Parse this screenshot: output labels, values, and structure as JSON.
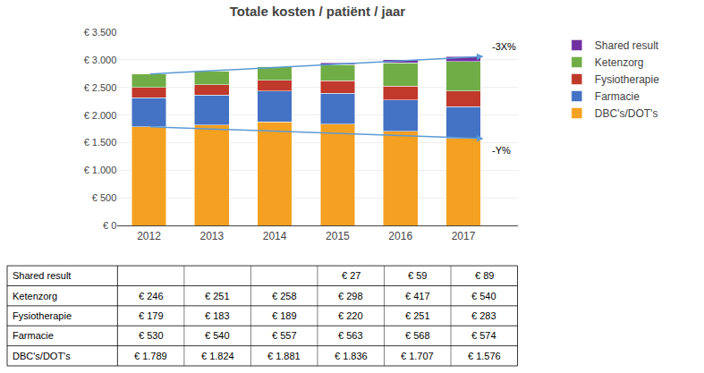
{
  "chart_data": {
    "type": "bar",
    "stacked": true,
    "title": "Totale kosten / patiënt / jaar",
    "categories": [
      "2012",
      "2013",
      "2014",
      "2015",
      "2016",
      "2017"
    ],
    "series": [
      {
        "name": "DBC's/DOT's",
        "color": "#F4A020",
        "values": [
          1789,
          1824,
          1881,
          1836,
          1707,
          1576
        ]
      },
      {
        "name": "Farmacie",
        "color": "#4472C4",
        "values": [
          530,
          540,
          557,
          563,
          568,
          574
        ]
      },
      {
        "name": "Fysiotherapie",
        "color": "#C0392B",
        "values": [
          179,
          183,
          189,
          220,
          251,
          283
        ]
      },
      {
        "name": "Ketenzorg",
        "color": "#70AD47",
        "values": [
          246,
          251,
          258,
          298,
          417,
          540
        ]
      },
      {
        "name": "Shared result",
        "color": "#7030A0",
        "values": [
          0,
          0,
          0,
          27,
          59,
          89
        ]
      }
    ],
    "ylim": [
      0,
      3500
    ],
    "yticks": [
      {
        "value": 0,
        "label": "€ 0"
      },
      {
        "value": 500,
        "label": "€ 500"
      },
      {
        "value": 1000,
        "label": "€ 1.000"
      },
      {
        "value": 1500,
        "label": "€ 1.500"
      },
      {
        "value": 2000,
        "label": "€ 2.000"
      },
      {
        "value": 2500,
        "label": "€ 2.500"
      },
      {
        "value": 3000,
        "label": "€ 3.000"
      },
      {
        "value": 3500,
        "label": "€ 3.500"
      }
    ],
    "grid": true,
    "legend": "right",
    "annotations": [
      {
        "text": "-3X%",
        "x": [
          "2012",
          "2017"
        ],
        "y": [
          2744,
          3062
        ],
        "position": "above"
      },
      {
        "text": "-Y%",
        "x": [
          "2012",
          "2017"
        ],
        "y": [
          1789,
          1576
        ],
        "position": "below"
      }
    ],
    "table": {
      "rows": [
        {
          "label": "Shared result",
          "cells": [
            null,
            null,
            null,
            "€ 27",
            "€ 59",
            "€ 89"
          ]
        },
        {
          "label": "Ketenzorg",
          "cells": [
            "€ 246",
            "€ 251",
            "€ 258",
            "€ 298",
            "€ 417",
            "€ 540"
          ]
        },
        {
          "label": "Fysiotherapie",
          "cells": [
            "€ 179",
            "€ 183",
            "€ 189",
            "€ 220",
            "€ 251",
            "€ 283"
          ]
        },
        {
          "label": "Farmacie",
          "cells": [
            "€ 530",
            "€ 540",
            "€ 557",
            "€ 563",
            "€ 568",
            "€ 574"
          ]
        },
        {
          "label": "DBC's/DOT's",
          "cells": [
            "€ 1.789",
            "€ 1.824",
            "€ 1.881",
            "€ 1.836",
            "€ 1.707",
            "€ 1.576"
          ]
        }
      ]
    }
  }
}
